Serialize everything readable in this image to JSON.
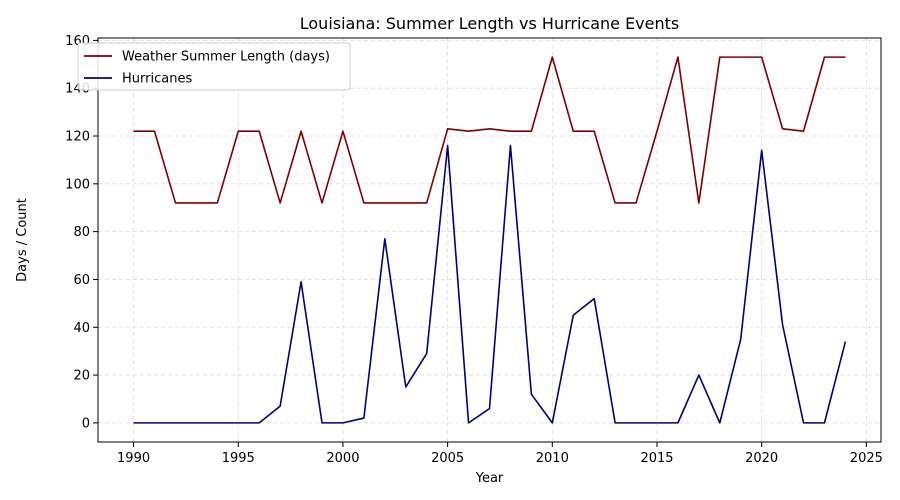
{
  "chart_data": {
    "type": "line",
    "title": "Louisiana: Summer Length vs Hurricane Events",
    "xlabel": "Year",
    "ylabel": "Days / Count",
    "xlim": [
      1988.3,
      2025.7
    ],
    "ylim": [
      -8,
      161
    ],
    "xticks": [
      1990,
      1995,
      2000,
      2005,
      2010,
      2015,
      2020,
      2025
    ],
    "yticks": [
      0,
      20,
      40,
      60,
      80,
      100,
      120,
      140,
      160
    ],
    "grid": true,
    "legend_position": "top-left",
    "x": [
      1990,
      1991,
      1992,
      1993,
      1994,
      1995,
      1996,
      1997,
      1998,
      1999,
      2000,
      2001,
      2002,
      2003,
      2004,
      2005,
      2006,
      2007,
      2008,
      2009,
      2010,
      2011,
      2012,
      2013,
      2014,
      2015,
      2016,
      2017,
      2018,
      2019,
      2020,
      2021,
      2022,
      2023,
      2024
    ],
    "series": [
      {
        "name": "Weather Summer Length (days)",
        "color": "#800000",
        "values": [
          122,
          122,
          92,
          92,
          92,
          122,
          122,
          92,
          122,
          92,
          122,
          92,
          92,
          92,
          92,
          123,
          122,
          123,
          122,
          122,
          153,
          122,
          122,
          92,
          92,
          122,
          153,
          92,
          153,
          153,
          153,
          123,
          122,
          153,
          153
        ]
      },
      {
        "name": "Hurricanes",
        "color": "#000080",
        "values": [
          0,
          0,
          0,
          0,
          0,
          0,
          0,
          7,
          59,
          0,
          0,
          2,
          77,
          15,
          29,
          116,
          0,
          6,
          116,
          12,
          0,
          45,
          52,
          0,
          0,
          0,
          0,
          20,
          0,
          35,
          114,
          41,
          0,
          0,
          34
        ]
      }
    ]
  }
}
